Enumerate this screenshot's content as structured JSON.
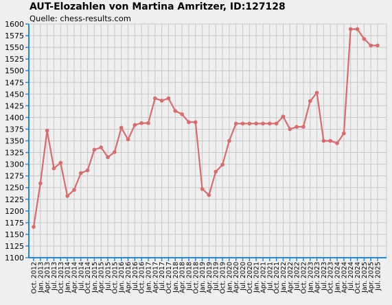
{
  "chart_data": {
    "type": "line",
    "title": "AUT-Elozahlen von Martina Amritzer, ID:127128",
    "subtitle": "Quelle: chess-results.com",
    "xlabel": "",
    "ylabel": "",
    "ylim": [
      1100,
      1600
    ],
    "ytick_step": 25,
    "grid": true,
    "colors": {
      "line": "#d86b6b",
      "axis": "#2288dd",
      "grid": "#c8c8c8",
      "background": "#efefef"
    },
    "categories": [
      "Oct. 2012",
      "Jan. 2013",
      "Apr. 2013",
      "Jul. 2013",
      "Oct. 2013",
      "Jan. 2014",
      "Apr. 2014",
      "Jul. 2014",
      "Oct. 2014",
      "Jan. 2015",
      "Apr. 2015",
      "Jul. 2015",
      "Oct. 2015",
      "Jan. 2016",
      "Apr. 2016",
      "Jul. 2016",
      "Oct. 2016",
      "Jan. 2017",
      "Apr. 2017",
      "Jul. 2017",
      "Oct. 2017",
      "Jan. 2018",
      "Apr. 2018",
      "Jul. 2018",
      "Oct. 2018",
      "Jan. 2019",
      "Apr. 2019",
      "Jul. 2019",
      "Oct. 2019",
      "Jan. 2020",
      "Apr. 2020",
      "Jul. 2020",
      "Oct. 2020",
      "Jan. 2021",
      "Apr. 2021",
      "Jul. 2021",
      "Oct. 2021",
      "Jan. 2022",
      "Apr. 2022",
      "Jul. 2022",
      "Oct. 2022",
      "Jan. 2023",
      "Apr. 2023",
      "Jul. 2023",
      "Oct. 2023",
      "Jan. 2024",
      "Apr. 2024",
      "Jul. 2024",
      "Oct. 2024",
      "Jan. 2025",
      "Apr. 2025",
      "Jul. 2025"
    ],
    "values": [
      1166,
      1259,
      1372,
      1291,
      1303,
      1232,
      1245,
      1281,
      1287,
      1331,
      1336,
      1315,
      1326,
      1378,
      1353,
      1384,
      1388,
      1388,
      1441,
      1436,
      1441,
      1414,
      1407,
      1390,
      1390,
      1247,
      1234,
      1284,
      1299,
      1350,
      1387,
      1387,
      1387,
      1387,
      1387,
      1387,
      1387,
      1402,
      1375,
      1380,
      1380,
      1435,
      1453,
      1350,
      1350,
      1345,
      1366,
      1589,
      1589,
      1568,
      1554,
      1554
    ]
  }
}
